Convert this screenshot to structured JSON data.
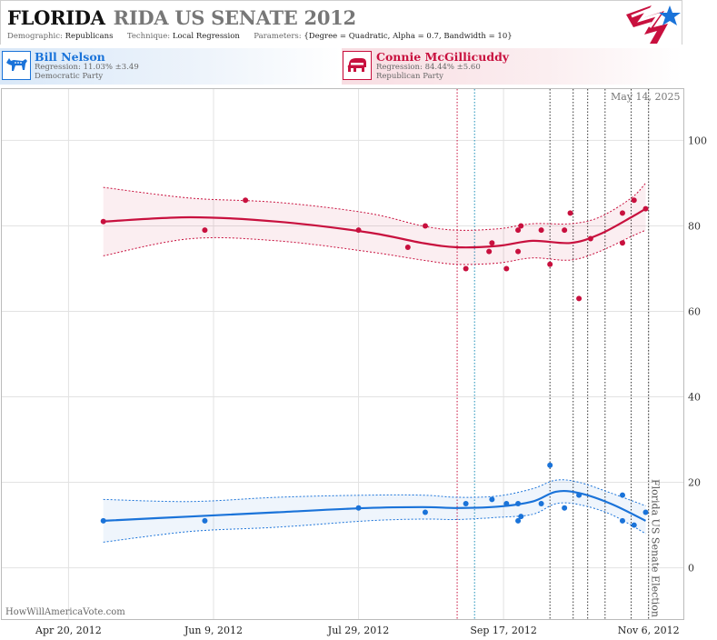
{
  "header": {
    "state": "FLORIDA",
    "race": "RIDA US SENATE 2012",
    "demographic_label": "Demographic:",
    "demographic_value": "Republicans",
    "technique_label": "Technique:",
    "technique_value": "Local Regression",
    "parameters_label": "Parameters:",
    "parameters_value": "{Degree = Quadratic, Alpha = 0.7, Bandwidth = 10}",
    "logo_icon": "star-stripes-logo-icon"
  },
  "candidates": {
    "dem": {
      "name": "Bill Nelson",
      "regression": "Regression: 11.03% ±3.49",
      "party": "Democratic Party",
      "icon": "donkey-icon",
      "color": "#1a73d9"
    },
    "rep": {
      "name": "Connie McGillicuddy",
      "regression": "Regression: 84.44% ±5.60",
      "party": "Republican Party",
      "icon": "elephant-icon",
      "color": "#c8103e"
    }
  },
  "date_stamp": "May 14, 2025",
  "election_label": "Florida US Senate Election",
  "watermark": "HowWillAmericaVote.com",
  "chart_data": {
    "type": "scatter",
    "x_tick_labels": [
      "Apr 20, 2012",
      "Jun 9, 2012",
      "Jul 29, 2012",
      "Sep 17, 2012",
      "Nov 6, 2012"
    ],
    "x_ticks": [
      "2012-04-20",
      "2012-06-09",
      "2012-07-29",
      "2012-09-17",
      "2012-11-06"
    ],
    "xlim": [
      "2012-03-28",
      "2012-11-18"
    ],
    "ylim": [
      -12,
      112
    ],
    "y_ticks": [
      0,
      20,
      40,
      60,
      80,
      100
    ],
    "grid": true,
    "markers": {
      "election": "2012-11-06",
      "red_lines": [
        "2012-09-01"
      ],
      "cyan_lines": [
        "2012-09-07"
      ],
      "black_lines": [
        "2012-10-03",
        "2012-10-11",
        "2012-10-16",
        "2012-10-22",
        "2012-10-31"
      ]
    },
    "series": [
      {
        "name": "Connie McGillicuddy",
        "color": "#c8103e",
        "points": [
          {
            "x": "2012-05-02",
            "y": 81
          },
          {
            "x": "2012-06-06",
            "y": 79
          },
          {
            "x": "2012-06-20",
            "y": 86
          },
          {
            "x": "2012-07-29",
            "y": 79
          },
          {
            "x": "2012-08-15",
            "y": 75
          },
          {
            "x": "2012-08-21",
            "y": 80
          },
          {
            "x": "2012-09-04",
            "y": 70
          },
          {
            "x": "2012-09-12",
            "y": 74
          },
          {
            "x": "2012-09-13",
            "y": 76
          },
          {
            "x": "2012-09-18",
            "y": 70
          },
          {
            "x": "2012-09-22",
            "y": 74
          },
          {
            "x": "2012-09-22",
            "y": 79
          },
          {
            "x": "2012-09-23",
            "y": 80
          },
          {
            "x": "2012-09-30",
            "y": 79
          },
          {
            "x": "2012-10-03",
            "y": 71
          },
          {
            "x": "2012-10-08",
            "y": 79
          },
          {
            "x": "2012-10-10",
            "y": 83
          },
          {
            "x": "2012-10-13",
            "y": 63
          },
          {
            "x": "2012-10-17",
            "y": 77
          },
          {
            "x": "2012-10-28",
            "y": 83
          },
          {
            "x": "2012-10-28",
            "y": 76
          },
          {
            "x": "2012-11-01",
            "y": 86
          },
          {
            "x": "2012-11-05",
            "y": 84
          }
        ],
        "trend": [
          {
            "x": "2012-05-02",
            "y": 81
          },
          {
            "x": "2012-06-01",
            "y": 82
          },
          {
            "x": "2012-07-01",
            "y": 81
          },
          {
            "x": "2012-08-01",
            "y": 78.5
          },
          {
            "x": "2012-08-20",
            "y": 76
          },
          {
            "x": "2012-09-01",
            "y": 75
          },
          {
            "x": "2012-09-15",
            "y": 75.3
          },
          {
            "x": "2012-09-27",
            "y": 76.5
          },
          {
            "x": "2012-10-10",
            "y": 76
          },
          {
            "x": "2012-10-20",
            "y": 78
          },
          {
            "x": "2012-10-31",
            "y": 82
          },
          {
            "x": "2012-11-05",
            "y": 84
          }
        ],
        "band_upper": [
          {
            "x": "2012-05-02",
            "y": 89
          },
          {
            "x": "2012-06-01",
            "y": 86.5
          },
          {
            "x": "2012-07-01",
            "y": 85.5
          },
          {
            "x": "2012-08-01",
            "y": 83
          },
          {
            "x": "2012-08-20",
            "y": 80
          },
          {
            "x": "2012-09-01",
            "y": 79
          },
          {
            "x": "2012-09-15",
            "y": 79.3
          },
          {
            "x": "2012-09-27",
            "y": 80.5
          },
          {
            "x": "2012-10-10",
            "y": 80.5
          },
          {
            "x": "2012-10-20",
            "y": 82
          },
          {
            "x": "2012-10-31",
            "y": 86.5
          },
          {
            "x": "2012-11-05",
            "y": 90
          }
        ],
        "band_lower": [
          {
            "x": "2012-05-02",
            "y": 73
          },
          {
            "x": "2012-06-01",
            "y": 77
          },
          {
            "x": "2012-07-01",
            "y": 76.5
          },
          {
            "x": "2012-08-01",
            "y": 74
          },
          {
            "x": "2012-08-20",
            "y": 72
          },
          {
            "x": "2012-09-01",
            "y": 71
          },
          {
            "x": "2012-09-15",
            "y": 71.3
          },
          {
            "x": "2012-09-27",
            "y": 72.5
          },
          {
            "x": "2012-10-10",
            "y": 72
          },
          {
            "x": "2012-10-20",
            "y": 74
          },
          {
            "x": "2012-10-31",
            "y": 77.5
          },
          {
            "x": "2012-11-05",
            "y": 79
          }
        ]
      },
      {
        "name": "Bill Nelson",
        "color": "#1a73d9",
        "points": [
          {
            "x": "2012-05-02",
            "y": 11
          },
          {
            "x": "2012-06-06",
            "y": 11
          },
          {
            "x": "2012-07-29",
            "y": 14
          },
          {
            "x": "2012-08-21",
            "y": 13
          },
          {
            "x": "2012-09-04",
            "y": 15
          },
          {
            "x": "2012-09-13",
            "y": 16
          },
          {
            "x": "2012-09-18",
            "y": 15
          },
          {
            "x": "2012-09-22",
            "y": 15
          },
          {
            "x": "2012-09-22",
            "y": 11
          },
          {
            "x": "2012-09-23",
            "y": 12
          },
          {
            "x": "2012-09-30",
            "y": 15
          },
          {
            "x": "2012-10-03",
            "y": 24
          },
          {
            "x": "2012-10-08",
            "y": 14
          },
          {
            "x": "2012-10-13",
            "y": 17
          },
          {
            "x": "2012-10-28",
            "y": 17
          },
          {
            "x": "2012-10-28",
            "y": 11
          },
          {
            "x": "2012-11-01",
            "y": 10
          },
          {
            "x": "2012-11-05",
            "y": 13
          }
        ],
        "trend": [
          {
            "x": "2012-05-02",
            "y": 11
          },
          {
            "x": "2012-06-01",
            "y": 12
          },
          {
            "x": "2012-07-01",
            "y": 13
          },
          {
            "x": "2012-08-01",
            "y": 14
          },
          {
            "x": "2012-08-20",
            "y": 14.2
          },
          {
            "x": "2012-09-01",
            "y": 14
          },
          {
            "x": "2012-09-15",
            "y": 14.3
          },
          {
            "x": "2012-09-27",
            "y": 15.5
          },
          {
            "x": "2012-10-05",
            "y": 17.8
          },
          {
            "x": "2012-10-13",
            "y": 17.5
          },
          {
            "x": "2012-10-24",
            "y": 15
          },
          {
            "x": "2012-11-05",
            "y": 11
          }
        ],
        "band_upper": [
          {
            "x": "2012-05-02",
            "y": 16
          },
          {
            "x": "2012-06-01",
            "y": 15.5
          },
          {
            "x": "2012-07-01",
            "y": 16.5
          },
          {
            "x": "2012-08-01",
            "y": 17
          },
          {
            "x": "2012-08-20",
            "y": 17
          },
          {
            "x": "2012-09-01",
            "y": 16.5
          },
          {
            "x": "2012-09-15",
            "y": 16.8
          },
          {
            "x": "2012-09-27",
            "y": 18.5
          },
          {
            "x": "2012-10-05",
            "y": 20.5
          },
          {
            "x": "2012-10-13",
            "y": 20
          },
          {
            "x": "2012-10-24",
            "y": 17.5
          },
          {
            "x": "2012-11-05",
            "y": 14.5
          }
        ],
        "band_lower": [
          {
            "x": "2012-05-02",
            "y": 6
          },
          {
            "x": "2012-06-01",
            "y": 8.5
          },
          {
            "x": "2012-07-01",
            "y": 9.5
          },
          {
            "x": "2012-08-01",
            "y": 11
          },
          {
            "x": "2012-08-20",
            "y": 11.4
          },
          {
            "x": "2012-09-01",
            "y": 11.3
          },
          {
            "x": "2012-09-15",
            "y": 11.8
          },
          {
            "x": "2012-09-27",
            "y": 12.5
          },
          {
            "x": "2012-10-05",
            "y": 15
          },
          {
            "x": "2012-10-13",
            "y": 14.8
          },
          {
            "x": "2012-10-24",
            "y": 12.5
          },
          {
            "x": "2012-11-05",
            "y": 8
          }
        ]
      }
    ]
  }
}
